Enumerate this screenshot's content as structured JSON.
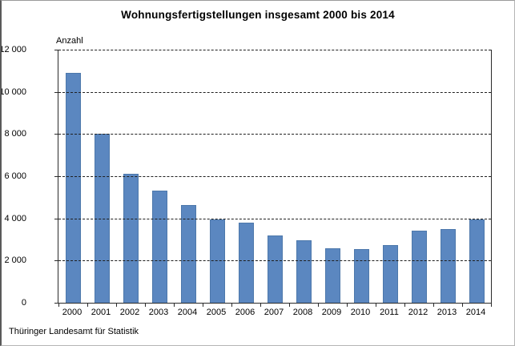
{
  "page": {
    "title": "Wohnungsfertigstellungen insgesamt 2000 bis 2014",
    "source": "Thüringer Landesamt für Statistik"
  },
  "chart_data": {
    "type": "bar",
    "title": "Wohnungsfertigstellungen insgesamt 2000 bis 2014",
    "xlabel": "",
    "ylabel": "Anzahl",
    "categories": [
      "2000",
      "2001",
      "2002",
      "2003",
      "2004",
      "2005",
      "2006",
      "2007",
      "2008",
      "2009",
      "2010",
      "2011",
      "2012",
      "2013",
      "2014"
    ],
    "values": [
      10900,
      8000,
      6100,
      5300,
      4650,
      3950,
      3800,
      3200,
      2950,
      2600,
      2550,
      2750,
      3400,
      3500,
      3950
    ],
    "ylim": [
      0,
      12000
    ],
    "ytick_step": 2000,
    "ytick_labels": [
      "0",
      "2 000",
      "4 000",
      "6 000",
      "8 000",
      "10 000",
      "12 000"
    ],
    "grid": "horizontal-dashed",
    "legend": "none",
    "bar_color": "#5b87c0",
    "source": "Thüringer Landesamt für Statistik"
  }
}
